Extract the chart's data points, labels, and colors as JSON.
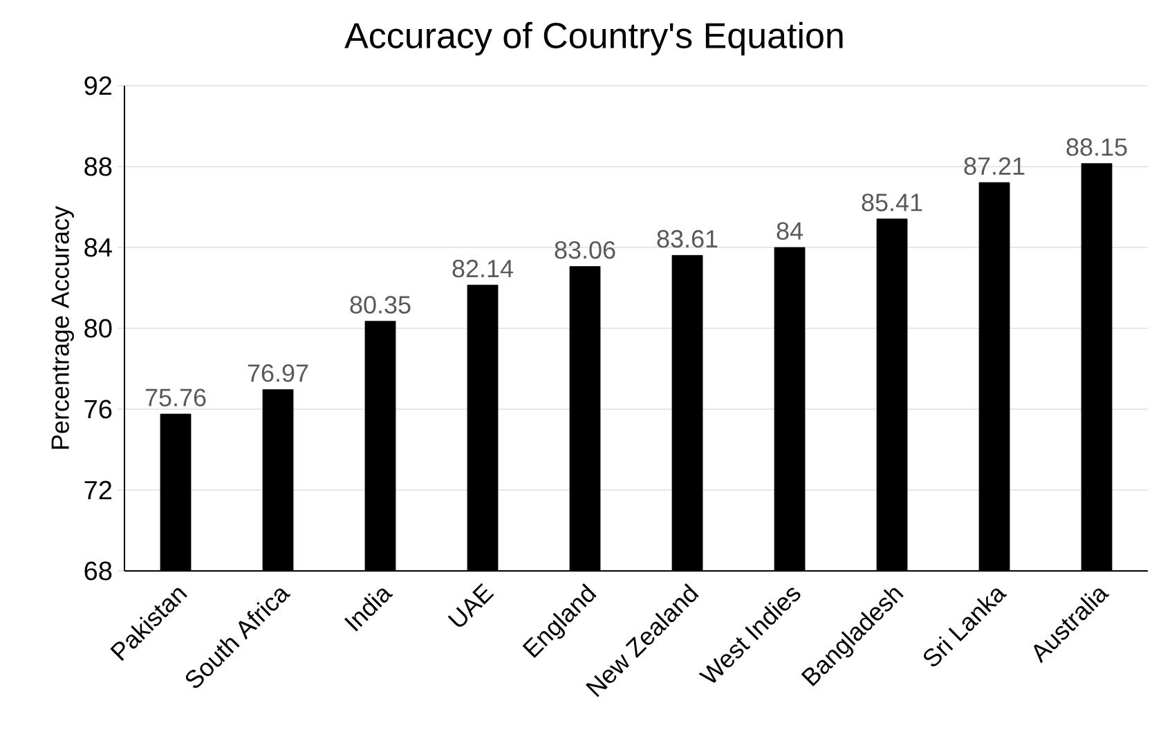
{
  "chart_data": {
    "type": "bar",
    "title": "Accuracy of Country's Equation",
    "ylabel": "Percentrage Accuracy",
    "categories": [
      "Pakistan",
      "South Africa",
      "India",
      "UAE",
      "England",
      "New Zealand",
      "West Indies",
      "Bangladesh",
      "Sri Lanka",
      "Australia"
    ],
    "values": [
      75.76,
      76.97,
      80.35,
      82.14,
      83.06,
      83.61,
      84,
      85.41,
      87.21,
      88.15
    ],
    "color": "#000000",
    "ylim": [
      68,
      92
    ],
    "yticks": [
      68,
      72,
      76,
      80,
      84,
      88,
      92
    ],
    "grid": "y",
    "data_labels": true
  }
}
